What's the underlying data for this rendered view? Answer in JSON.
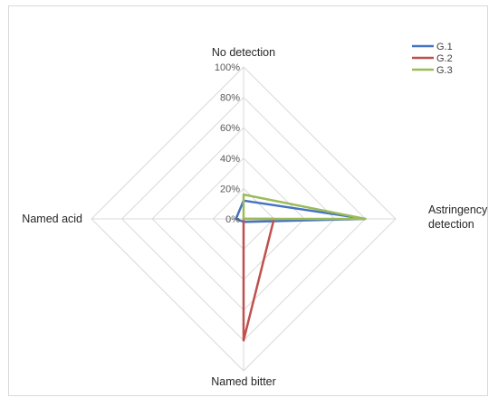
{
  "chart_data": {
    "type": "radar",
    "categories": [
      "No detection",
      "Astringency detection",
      "Named bitter",
      "Named acid"
    ],
    "category_lines": [
      [
        "No detection"
      ],
      [
        "Astringency",
        "detection"
      ],
      [
        "Named bitter"
      ],
      [
        "Named acid"
      ]
    ],
    "ticks": [
      "0%",
      "20%",
      "40%",
      "60%",
      "80%",
      "100%"
    ],
    "rlim": [
      0,
      100
    ],
    "grid": true,
    "legend_position": "top-right",
    "series": [
      {
        "name": "G.1",
        "color": "#4472C4",
        "values": [
          12,
          80,
          2,
          5
        ]
      },
      {
        "name": "G.2",
        "color": "#C0504D",
        "values": [
          0,
          20,
          80,
          0
        ]
      },
      {
        "name": "G.3",
        "color": "#9BBB59",
        "values": [
          16,
          80,
          0,
          0
        ]
      }
    ]
  }
}
